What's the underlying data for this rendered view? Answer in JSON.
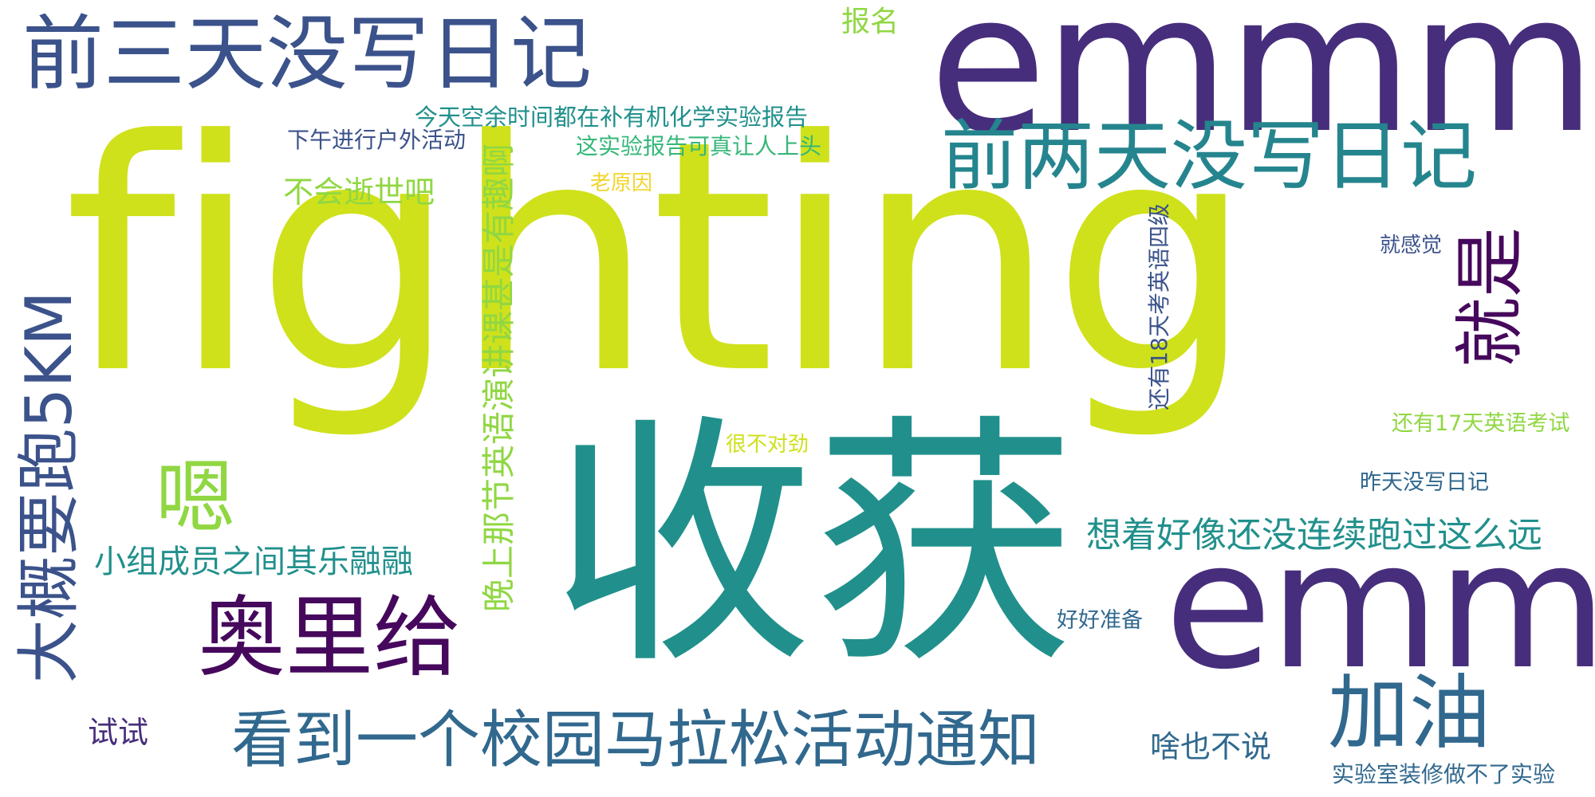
{
  "word_cloud": {
    "words": {
      "fighting": "fighting",
      "emmmm": "emmmm",
      "shouhuo": "收获",
      "emm": "emm",
      "qiansan": "前三天没写日记",
      "qianliang": "前两天没写日记",
      "aoligei": "奥里给",
      "kandao": "看到一个校园马拉松活动通知",
      "jiayou": "加油",
      "en": "嗯",
      "xiangzhe": "想着好像还没连续跑过这么远",
      "xiaozu": "小组成员之间其乐融融",
      "buhui": "不会逝世吧",
      "shaye": "啥也不说",
      "shishi": "试试",
      "baoming": "报名",
      "jintian": "今天空余时间都在补有机化学实验报告",
      "xiawu": "下午进行户外活动",
      "zhe": "这实验报告可真让人上头",
      "laoyuan": "老原因",
      "jiugan": "就感觉",
      "haiyou17": "还有17天英语考试",
      "zuotian": "昨天没写日记",
      "henbu": "很不对劲",
      "haohao": "好好准备",
      "shiyan": "实验室装修做不了实验",
      "dagai": "大概要跑5KM",
      "wanshang": "晚上那节英语演讲课甚是有趣啊",
      "jiushi": "就是",
      "haiyou18": "还有18天考英语四级"
    },
    "palette": {
      "lime": "#cfe11b",
      "teal": "#21908c",
      "purple": "#472e7c",
      "dark_purple": "#46085c",
      "blue": "#3b528b",
      "steel": "#31688e",
      "cyan": "#25858e",
      "green": "#35b778",
      "light_green": "#90d743",
      "yellow": "#f2d52c"
    }
  }
}
